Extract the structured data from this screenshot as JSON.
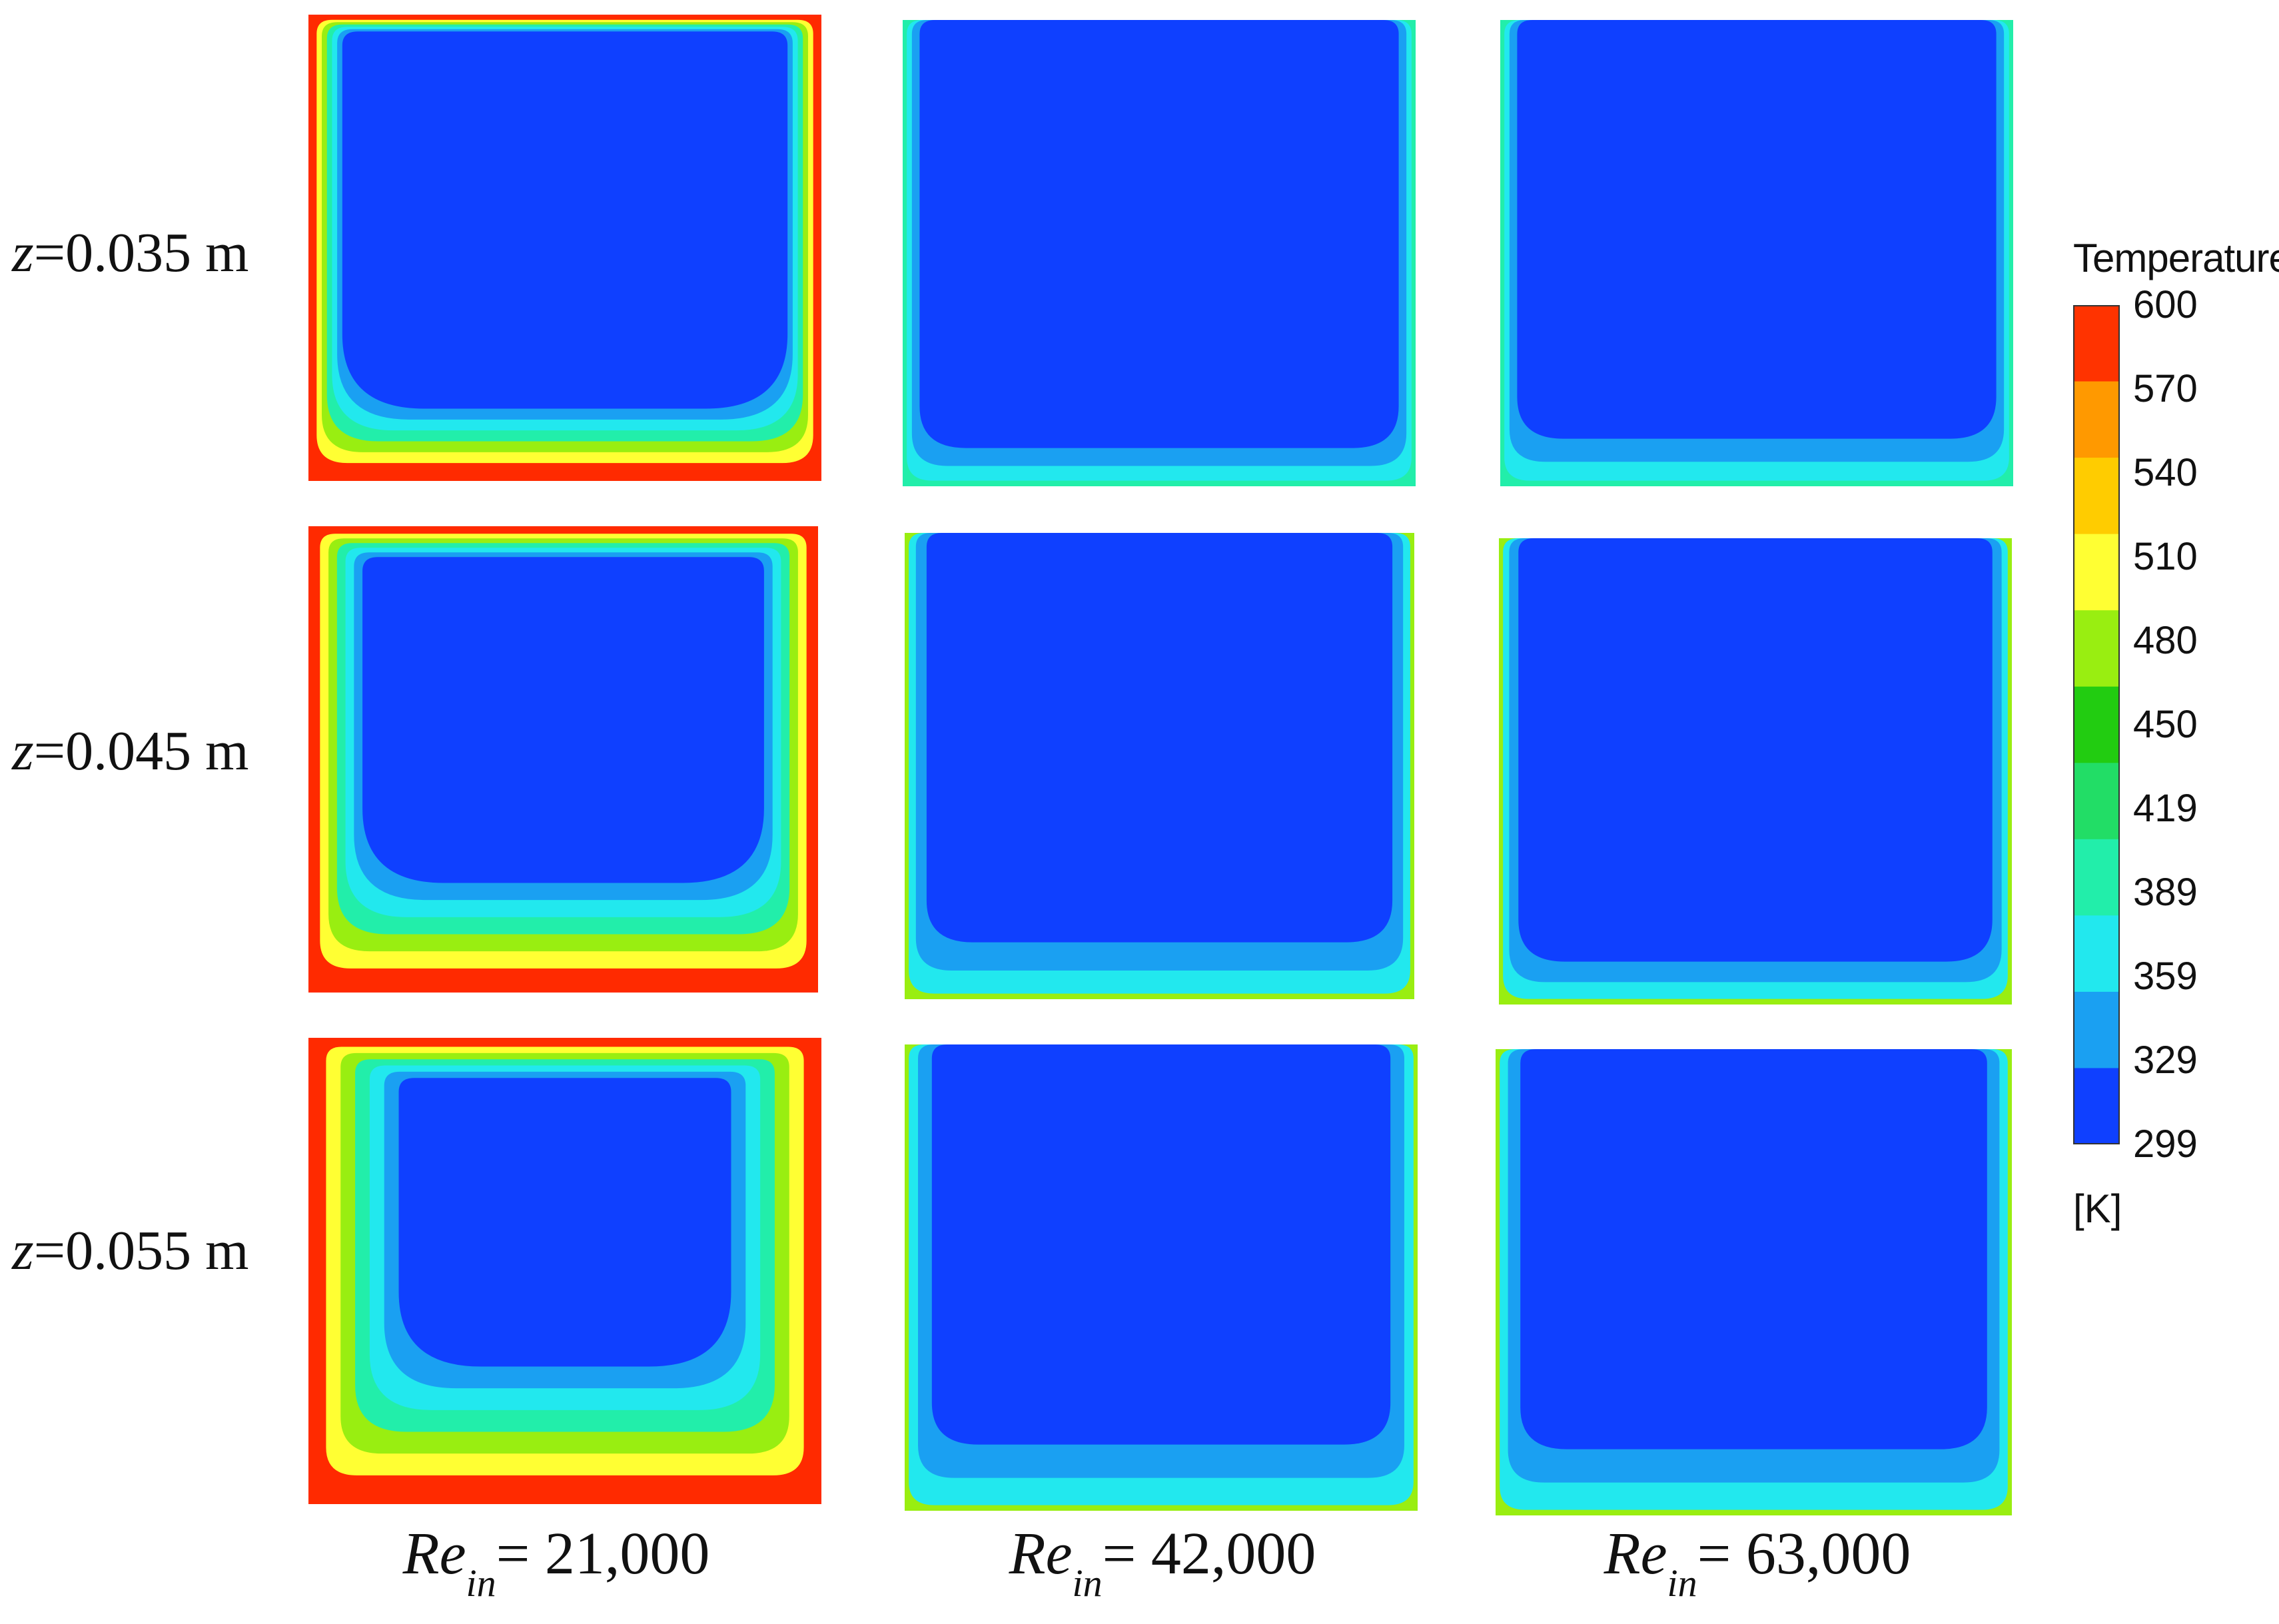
{
  "rows": [
    {
      "z_var": "z",
      "z_value": "=0.035 m"
    },
    {
      "z_var": "z",
      "z_value": "=0.045 m"
    },
    {
      "z_var": "z",
      "z_value": "=0.055 m"
    }
  ],
  "columns": [
    {
      "re_var": "Re",
      "re_sub": "in",
      "re_value": "= 21,000"
    },
    {
      "re_var": "Re",
      "re_sub": "in",
      "re_value": "= 42,000"
    },
    {
      "re_var": "Re",
      "re_sub": "in",
      "re_value": "= 63,000"
    }
  ],
  "colorbar": {
    "title": "Temperature",
    "unit": "[K]",
    "ticks": [
      "600",
      "570",
      "540",
      "510",
      "480",
      "450",
      "419",
      "389",
      "359",
      "329",
      "299"
    ],
    "band_colors": [
      "#ff3300",
      "#ff9900",
      "#ffcc00",
      "#ffff33",
      "#99ee11",
      "#22cc11",
      "#22dd66",
      "#22eeaa",
      "#22e8ee",
      "#1aa0f2",
      "#0f40ff"
    ]
  },
  "contour_colors": {
    "core": "#0f40ff",
    "layer1": "#1aa0f2",
    "layer2": "#22e8ee",
    "layer3": "#22eeaa",
    "layer4": "#99ee11",
    "layer5": "#ffff33",
    "hot": "#ff2a00"
  },
  "panel_thermal_layer_levels": [
    [
      5,
      1,
      1
    ],
    [
      5,
      2,
      2
    ],
    [
      5,
      2,
      2
    ]
  ]
}
